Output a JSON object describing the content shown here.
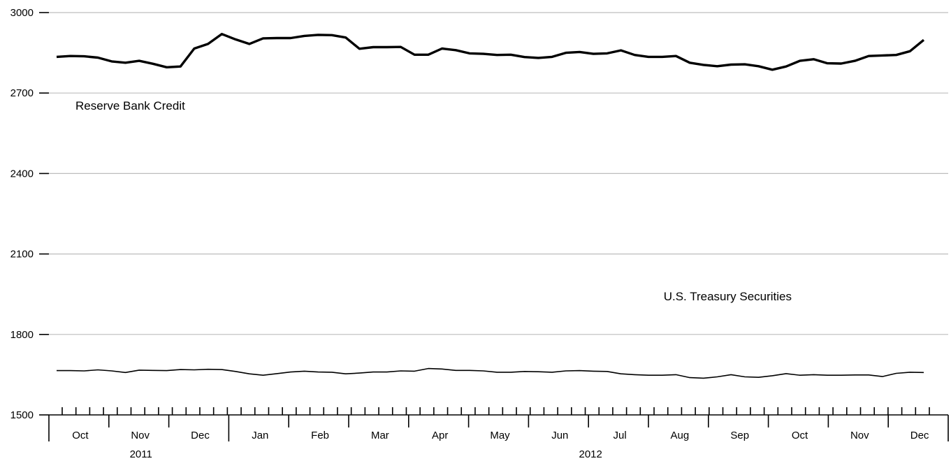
{
  "chart_data": {
    "type": "line",
    "title": "",
    "xlabel": "",
    "ylabel": "",
    "ylim": [
      1500,
      3000
    ],
    "yticks": [
      1500,
      1800,
      2100,
      2400,
      2700,
      3000
    ],
    "grid": true,
    "months": [
      "Oct",
      "Nov",
      "Dec",
      "Jan",
      "Feb",
      "Mar",
      "Apr",
      "May",
      "Jun",
      "Jul",
      "Aug",
      "Sep",
      "Oct",
      "Nov",
      "Dec"
    ],
    "years": [
      {
        "label": "2011",
        "first_month": 0,
        "last_month": 2
      },
      {
        "label": "2012",
        "first_month": 3,
        "last_month": 14
      }
    ],
    "weeks": [
      "2011-10-05",
      "2011-10-12",
      "2011-10-19",
      "2011-10-26",
      "2011-11-02",
      "2011-11-09",
      "2011-11-16",
      "2011-11-23",
      "2011-11-30",
      "2011-12-07",
      "2011-12-14",
      "2011-12-21",
      "2011-12-28",
      "2012-01-04",
      "2012-01-11",
      "2012-01-18",
      "2012-01-25",
      "2012-02-01",
      "2012-02-08",
      "2012-02-15",
      "2012-02-22",
      "2012-02-29",
      "2012-03-07",
      "2012-03-14",
      "2012-03-21",
      "2012-03-28",
      "2012-04-04",
      "2012-04-11",
      "2012-04-18",
      "2012-04-25",
      "2012-05-02",
      "2012-05-09",
      "2012-05-16",
      "2012-05-23",
      "2012-05-30",
      "2012-06-06",
      "2012-06-13",
      "2012-06-20",
      "2012-06-27",
      "2012-07-04",
      "2012-07-11",
      "2012-07-18",
      "2012-07-25",
      "2012-08-01",
      "2012-08-08",
      "2012-08-15",
      "2012-08-22",
      "2012-08-29",
      "2012-09-05",
      "2012-09-12",
      "2012-09-19",
      "2012-09-26",
      "2012-10-03",
      "2012-10-10",
      "2012-10-17",
      "2012-10-24",
      "2012-10-31",
      "2012-11-07",
      "2012-11-14",
      "2012-11-21",
      "2012-11-28",
      "2012-12-05",
      "2012-12-12",
      "2012-12-19"
    ],
    "series": [
      {
        "name": "Reserve Bank Credit",
        "values": [
          2835,
          2838,
          2837,
          2832,
          2818,
          2813,
          2820,
          2809,
          2796,
          2799,
          2866,
          2883,
          2920,
          2900,
          2883,
          2904,
          2905,
          2905,
          2913,
          2917,
          2916,
          2907,
          2865,
          2871,
          2871,
          2872,
          2843,
          2843,
          2866,
          2860,
          2848,
          2846,
          2842,
          2843,
          2834,
          2831,
          2835,
          2850,
          2853,
          2846,
          2848,
          2859,
          2842,
          2835,
          2835,
          2838,
          2813,
          2805,
          2800,
          2806,
          2807,
          2800,
          2787,
          2799,
          2820,
          2826,
          2811,
          2810,
          2820,
          2838,
          2840,
          2842,
          2856,
          2898
        ]
      },
      {
        "name": "U.S. Treasury Securities",
        "values": [
          1665,
          1665,
          1664,
          1668,
          1664,
          1658,
          1667,
          1666,
          1665,
          1669,
          1668,
          1670,
          1669,
          1662,
          1653,
          1648,
          1654,
          1660,
          1663,
          1660,
          1659,
          1653,
          1656,
          1660,
          1660,
          1664,
          1663,
          1673,
          1671,
          1666,
          1666,
          1664,
          1659,
          1659,
          1662,
          1661,
          1659,
          1664,
          1665,
          1663,
          1662,
          1653,
          1650,
          1648,
          1648,
          1650,
          1639,
          1637,
          1642,
          1650,
          1642,
          1640,
          1646,
          1654,
          1648,
          1650,
          1648,
          1648,
          1649,
          1649,
          1643,
          1655,
          1659,
          1658
        ]
      }
    ]
  }
}
